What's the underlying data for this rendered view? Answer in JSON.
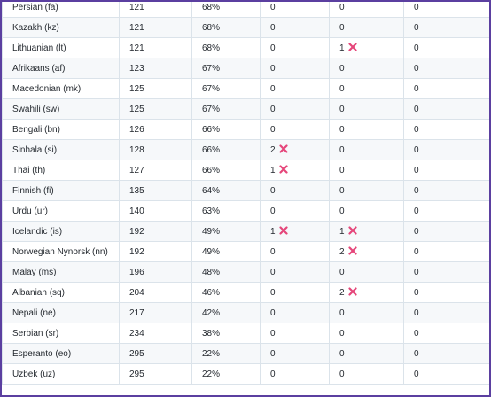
{
  "table": {
    "rows": [
      [
        "Persian (fa)",
        "121",
        "68%",
        "0",
        "0",
        "0"
      ],
      [
        "Kazakh (kz)",
        "121",
        "68%",
        "0",
        "0",
        "0"
      ],
      [
        "Lithuanian (lt)",
        "121",
        "68%",
        "0",
        "1",
        "0"
      ],
      [
        "Afrikaans (af)",
        "123",
        "67%",
        "0",
        "0",
        "0"
      ],
      [
        "Macedonian (mk)",
        "125",
        "67%",
        "0",
        "0",
        "0"
      ],
      [
        "Swahili (sw)",
        "125",
        "67%",
        "0",
        "0",
        "0"
      ],
      [
        "Bengali (bn)",
        "126",
        "66%",
        "0",
        "0",
        "0"
      ],
      [
        "Sinhala (si)",
        "128",
        "66%",
        "2",
        "0",
        "0"
      ],
      [
        "Thai (th)",
        "127",
        "66%",
        "1",
        "0",
        "0"
      ],
      [
        "Finnish (fi)",
        "135",
        "64%",
        "0",
        "0",
        "0"
      ],
      [
        "Urdu (ur)",
        "140",
        "63%",
        "0",
        "0",
        "0"
      ],
      [
        "Icelandic (is)",
        "192",
        "49%",
        "1",
        "1",
        "0"
      ],
      [
        "Norwegian Nynorsk (nn)",
        "192",
        "49%",
        "0",
        "2",
        "0"
      ],
      [
        "Malay (ms)",
        "196",
        "48%",
        "0",
        "0",
        "0"
      ],
      [
        "Albanian (sq)",
        "204",
        "46%",
        "0",
        "2",
        "0"
      ],
      [
        "Nepali (ne)",
        "217",
        "42%",
        "0",
        "0",
        "0"
      ],
      [
        "Serbian (sr)",
        "234",
        "38%",
        "0",
        "0",
        "0"
      ],
      [
        "Esperanto (eo)",
        "295",
        "22%",
        "0",
        "0",
        "0"
      ],
      [
        "Uzbek (uz)",
        "295",
        "22%",
        "0",
        "0",
        "0"
      ]
    ],
    "error_icon": "cross-mark-icon"
  },
  "colors": {
    "frame_border": "#5b3fa0",
    "grid": "#dbe3ea",
    "stripe": "#f6f8fa",
    "error_mark": "#e5467a"
  }
}
